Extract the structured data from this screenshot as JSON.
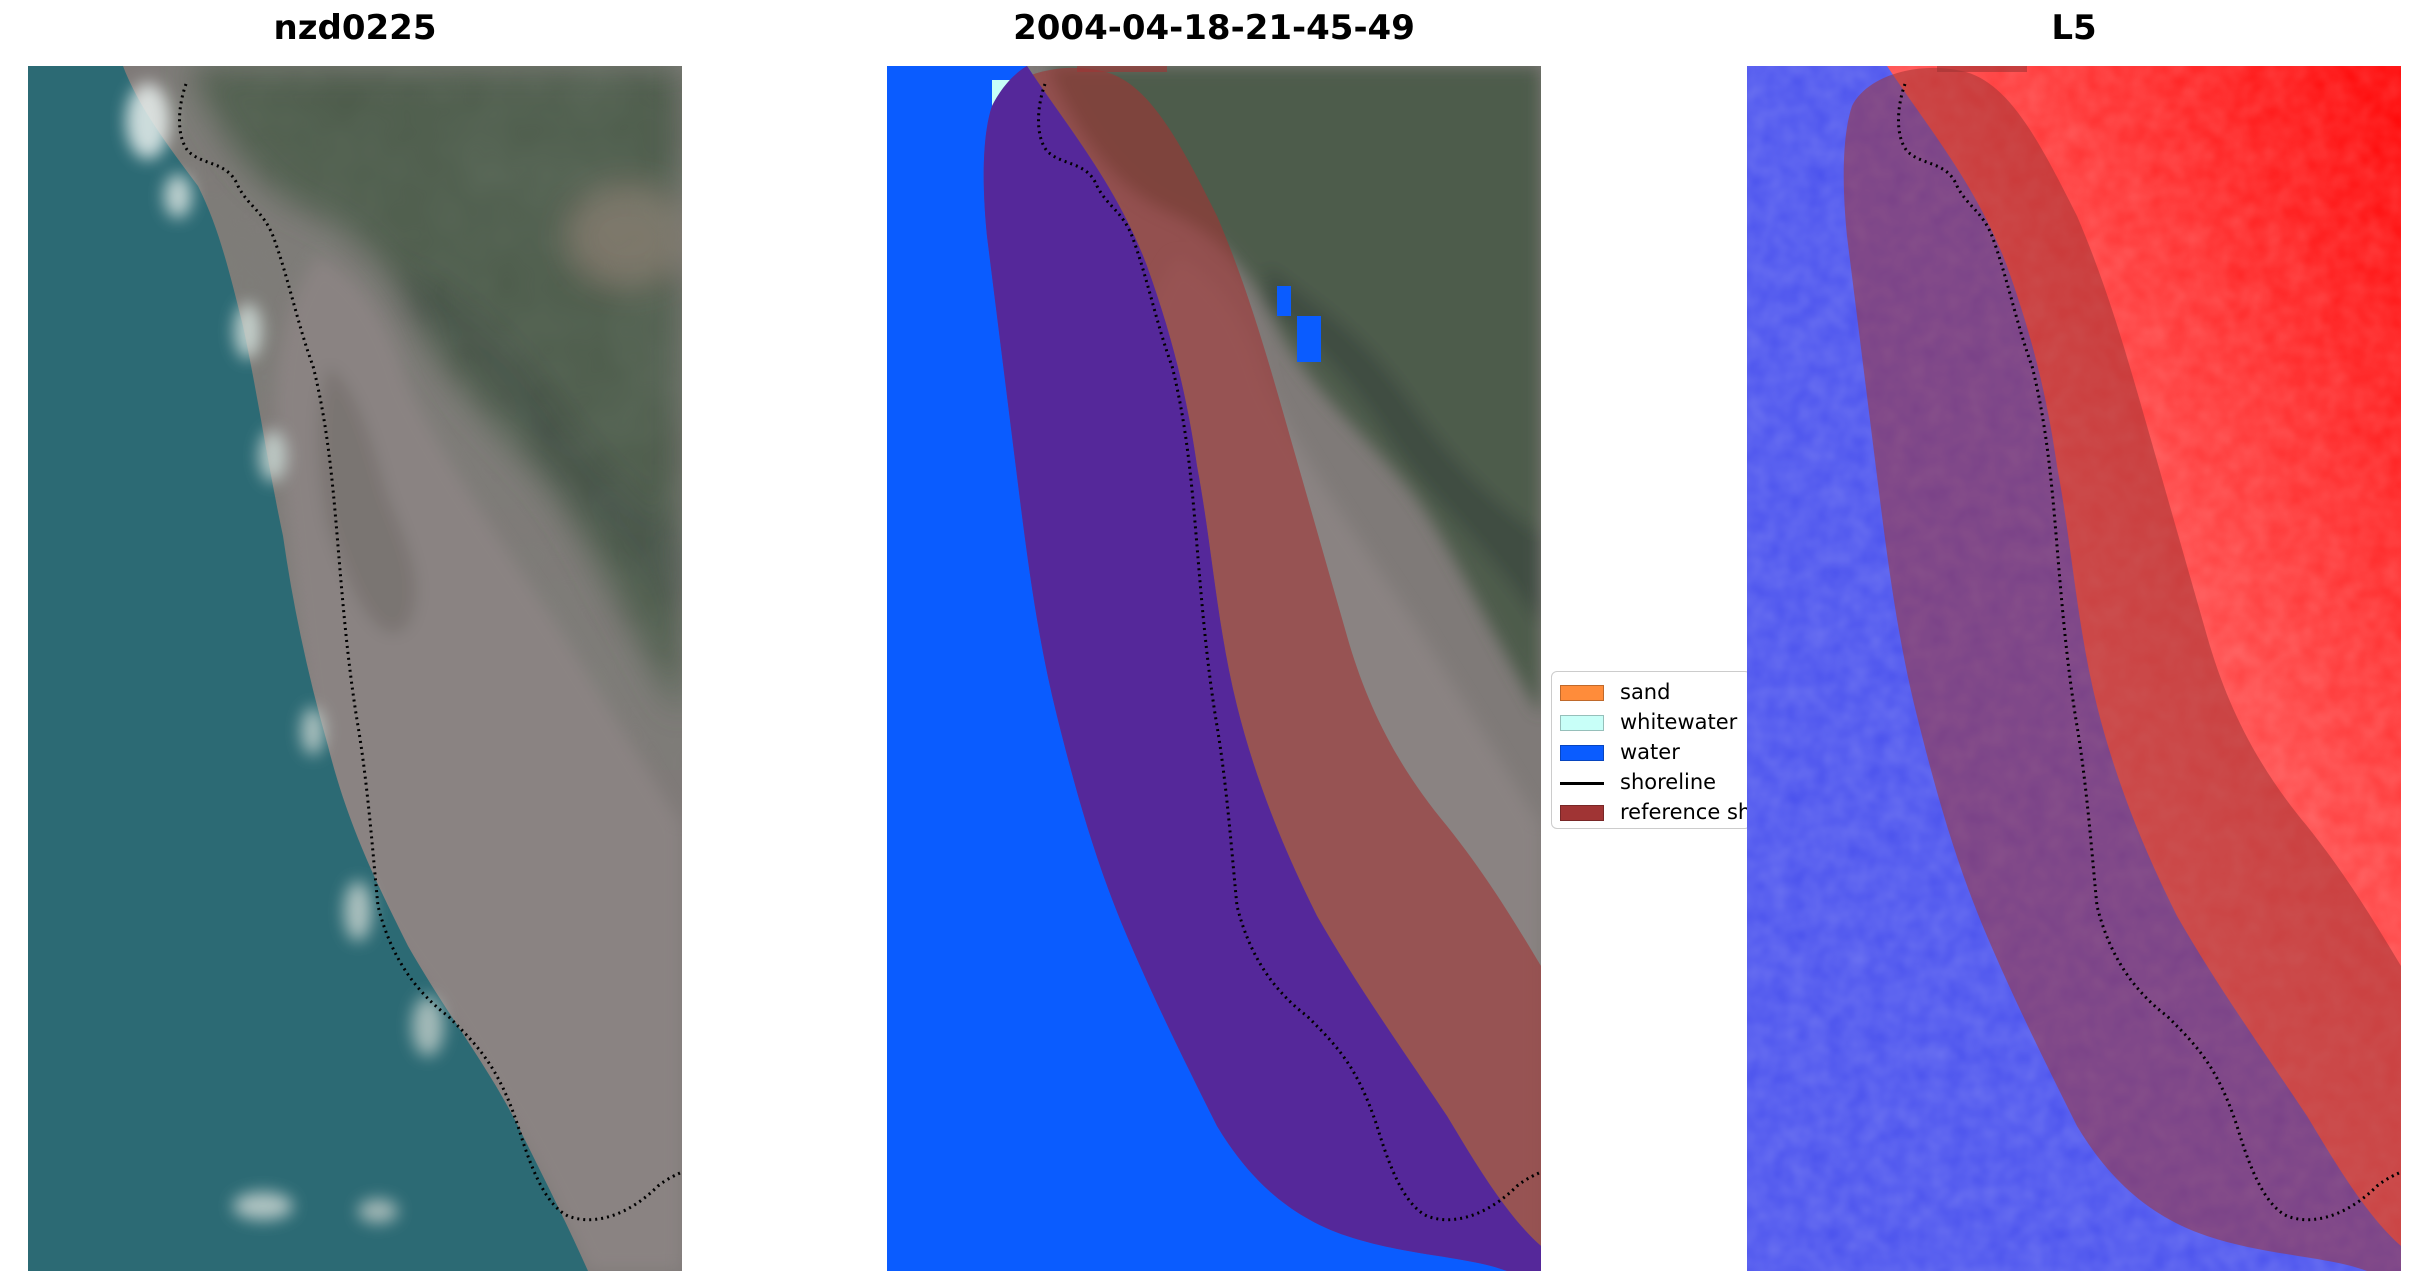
{
  "panels": [
    {
      "title": "nzd0225",
      "content": "RGB satellite image"
    },
    {
      "title": "2004-04-18-21-45-49",
      "content": "classified image"
    },
    {
      "title": "L5",
      "content": "water index image"
    }
  ],
  "legend": {
    "entries": [
      {
        "label": "sand",
        "color": "#ff8c3a",
        "kind": "patch"
      },
      {
        "label": "whitewater",
        "color": "#c8fff8",
        "kind": "patch"
      },
      {
        "label": "water",
        "color": "#0a5cff",
        "kind": "patch"
      },
      {
        "label": "shoreline",
        "color": "#000000",
        "kind": "line"
      },
      {
        "label": "reference shoreline buffer",
        "color": "#a03434",
        "kind": "patch"
      }
    ]
  },
  "colors": {
    "ocean": "#2c6a74",
    "land": "#7f7a78",
    "vegetation": "#4c5a4a",
    "water_class": "#0a5cff",
    "buffer_overlay": "#a03434",
    "index_water": "#4a52ee",
    "index_land": "#ff2a2a",
    "shoreline": "#000000"
  }
}
